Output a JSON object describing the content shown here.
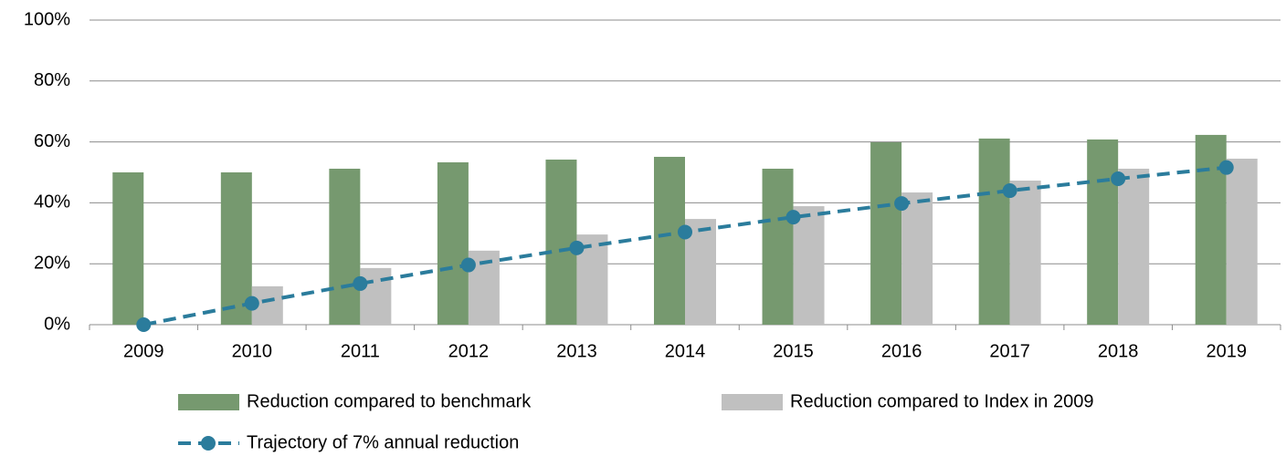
{
  "chart_data": {
    "type": "bar",
    "categories": [
      "2009",
      "2010",
      "2011",
      "2012",
      "2013",
      "2014",
      "2015",
      "2016",
      "2017",
      "2018",
      "2019"
    ],
    "series": [
      {
        "name": "Reduction compared to benchmark",
        "type": "bar",
        "color": "#76996f",
        "values": [
          50,
          50,
          51.2,
          53.3,
          54.2,
          55.1,
          51.2,
          59.9,
          61.1,
          60.8,
          62.3
        ]
      },
      {
        "name": "Reduction compared to Index in 2009",
        "type": "bar",
        "color": "#c0c0c0",
        "values": [
          0,
          12.6,
          18.6,
          24.3,
          29.6,
          34.7,
          38.9,
          43.4,
          47.3,
          51.2,
          54.5
        ]
      },
      {
        "name": "Trajectory of 7% annual reduction",
        "type": "line",
        "color": "#2b7c9c",
        "values": [
          0,
          7,
          13.5,
          19.6,
          25.2,
          30.4,
          35.3,
          39.8,
          44.0,
          47.9,
          51.6
        ]
      }
    ],
    "ylim": [
      0,
      100
    ],
    "yticks": [
      {
        "value": 0,
        "label": "0%"
      },
      {
        "value": 20,
        "label": "20%"
      },
      {
        "value": 40,
        "label": "40%"
      },
      {
        "value": 60,
        "label": "60%"
      },
      {
        "value": 80,
        "label": "80%"
      },
      {
        "value": 100,
        "label": "100%"
      }
    ],
    "grid": true,
    "legend": "bottom"
  }
}
